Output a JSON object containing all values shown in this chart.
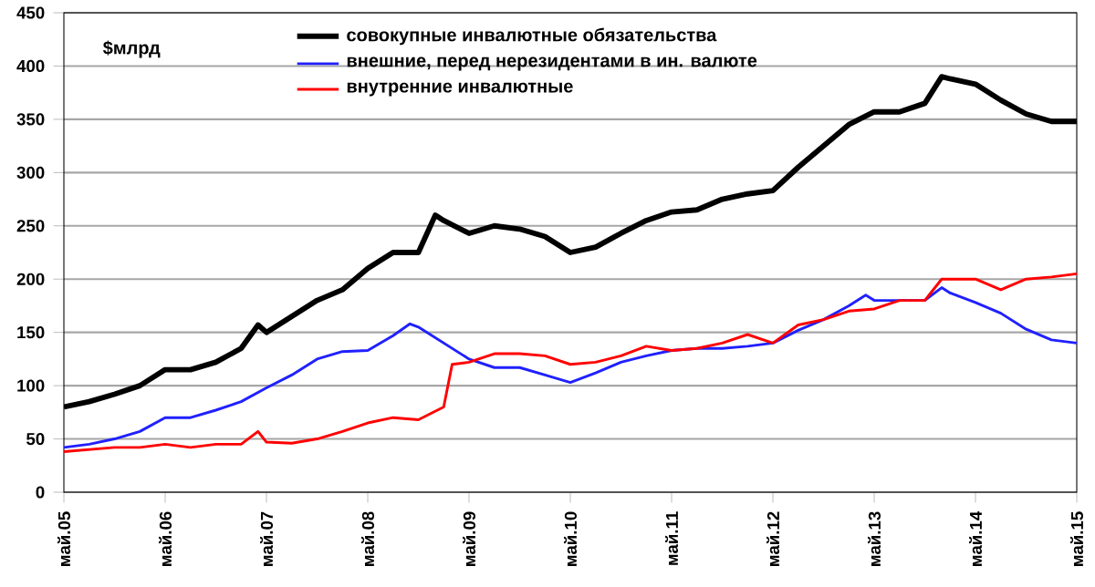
{
  "chart_data": {
    "type": "line",
    "ylim": [
      0,
      450
    ],
    "yticks": [
      0,
      50,
      100,
      150,
      200,
      250,
      300,
      350,
      400,
      450
    ],
    "xlim": [
      "2005-05",
      "2015-05"
    ],
    "xticks": [
      {
        "value": "2005-05",
        "label": "май.05"
      },
      {
        "value": "2006-05",
        "label": "май.06"
      },
      {
        "value": "2007-05",
        "label": "май.07"
      },
      {
        "value": "2008-05",
        "label": "май.08"
      },
      {
        "value": "2009-05",
        "label": "май.09"
      },
      {
        "value": "2010-05",
        "label": "май.10"
      },
      {
        "value": "2011-05",
        "label": "май.11"
      },
      {
        "value": "2012-05",
        "label": "май.12"
      },
      {
        "value": "2013-05",
        "label": "май.13"
      },
      {
        "value": "2014-05",
        "label": "май.14"
      },
      {
        "value": "2015-05",
        "label": "май.15"
      }
    ],
    "grid": "y",
    "legend": "top",
    "annotations": [
      "$млрд"
    ],
    "series": [
      {
        "name": "совокупные  инвалютные  обязательства",
        "color": "#000000",
        "x": [
          "2005-05",
          "2005-08",
          "2005-11",
          "2006-02",
          "2006-05",
          "2006-08",
          "2006-11",
          "2007-02",
          "2007-04",
          "2007-05",
          "2007-08",
          "2007-11",
          "2008-02",
          "2008-05",
          "2008-08",
          "2008-11",
          "2009-01",
          "2009-02",
          "2009-05",
          "2009-08",
          "2009-11",
          "2010-02",
          "2010-05",
          "2010-08",
          "2010-11",
          "2011-02",
          "2011-05",
          "2011-08",
          "2011-11",
          "2012-02",
          "2012-05",
          "2012-08",
          "2012-11",
          "2013-02",
          "2013-05",
          "2013-08",
          "2013-11",
          "2014-01",
          "2014-02",
          "2014-05",
          "2014-08",
          "2014-11",
          "2015-02",
          "2015-05"
        ],
        "values": [
          80,
          85,
          92,
          100,
          115,
          115,
          122,
          135,
          157,
          150,
          165,
          180,
          190,
          210,
          225,
          225,
          260,
          255,
          243,
          250,
          247,
          240,
          225,
          230,
          243,
          255,
          263,
          265,
          275,
          280,
          283,
          305,
          325,
          345,
          357,
          357,
          365,
          390,
          388,
          383,
          368,
          355,
          348,
          348
        ]
      },
      {
        "name": "внешние, перед нерезидентами в ин. валюте",
        "color": "#2020ff",
        "x": [
          "2005-05",
          "2005-08",
          "2005-11",
          "2006-02",
          "2006-05",
          "2006-08",
          "2006-11",
          "2007-02",
          "2007-05",
          "2007-08",
          "2007-11",
          "2008-02",
          "2008-05",
          "2008-08",
          "2008-10",
          "2008-11",
          "2009-02",
          "2009-05",
          "2009-08",
          "2009-11",
          "2010-02",
          "2010-05",
          "2010-08",
          "2010-11",
          "2011-02",
          "2011-05",
          "2011-08",
          "2011-11",
          "2012-02",
          "2012-05",
          "2012-08",
          "2012-11",
          "2013-02",
          "2013-04",
          "2013-05",
          "2013-08",
          "2013-11",
          "2014-01",
          "2014-02",
          "2014-05",
          "2014-08",
          "2014-11",
          "2015-02",
          "2015-05"
        ],
        "values": [
          42,
          45,
          50,
          57,
          70,
          70,
          77,
          85,
          98,
          110,
          125,
          132,
          133,
          147,
          158,
          155,
          140,
          125,
          117,
          117,
          110,
          103,
          112,
          122,
          128,
          133,
          135,
          135,
          137,
          140,
          152,
          162,
          175,
          185,
          180,
          180,
          180,
          192,
          187,
          178,
          168,
          153,
          143,
          140
        ]
      },
      {
        "name": "внутренние  инвалютные",
        "color": "#ff0000",
        "x": [
          "2005-05",
          "2005-08",
          "2005-11",
          "2006-02",
          "2006-05",
          "2006-08",
          "2006-11",
          "2007-02",
          "2007-04",
          "2007-05",
          "2007-08",
          "2007-11",
          "2008-02",
          "2008-05",
          "2008-08",
          "2008-11",
          "2009-02",
          "2009-03",
          "2009-05",
          "2009-08",
          "2009-11",
          "2010-02",
          "2010-05",
          "2010-08",
          "2010-11",
          "2011-02",
          "2011-05",
          "2011-08",
          "2011-11",
          "2012-02",
          "2012-05",
          "2012-08",
          "2012-11",
          "2013-02",
          "2013-05",
          "2013-08",
          "2013-11",
          "2014-01",
          "2014-02",
          "2014-05",
          "2014-08",
          "2014-11",
          "2015-02",
          "2015-05"
        ],
        "values": [
          38,
          40,
          42,
          42,
          45,
          42,
          45,
          45,
          57,
          47,
          46,
          50,
          57,
          65,
          70,
          68,
          80,
          120,
          122,
          130,
          130,
          128,
          120,
          122,
          128,
          137,
          133,
          135,
          140,
          148,
          140,
          157,
          162,
          170,
          172,
          180,
          180,
          200,
          200,
          200,
          190,
          200,
          202,
          205
        ]
      }
    ]
  }
}
